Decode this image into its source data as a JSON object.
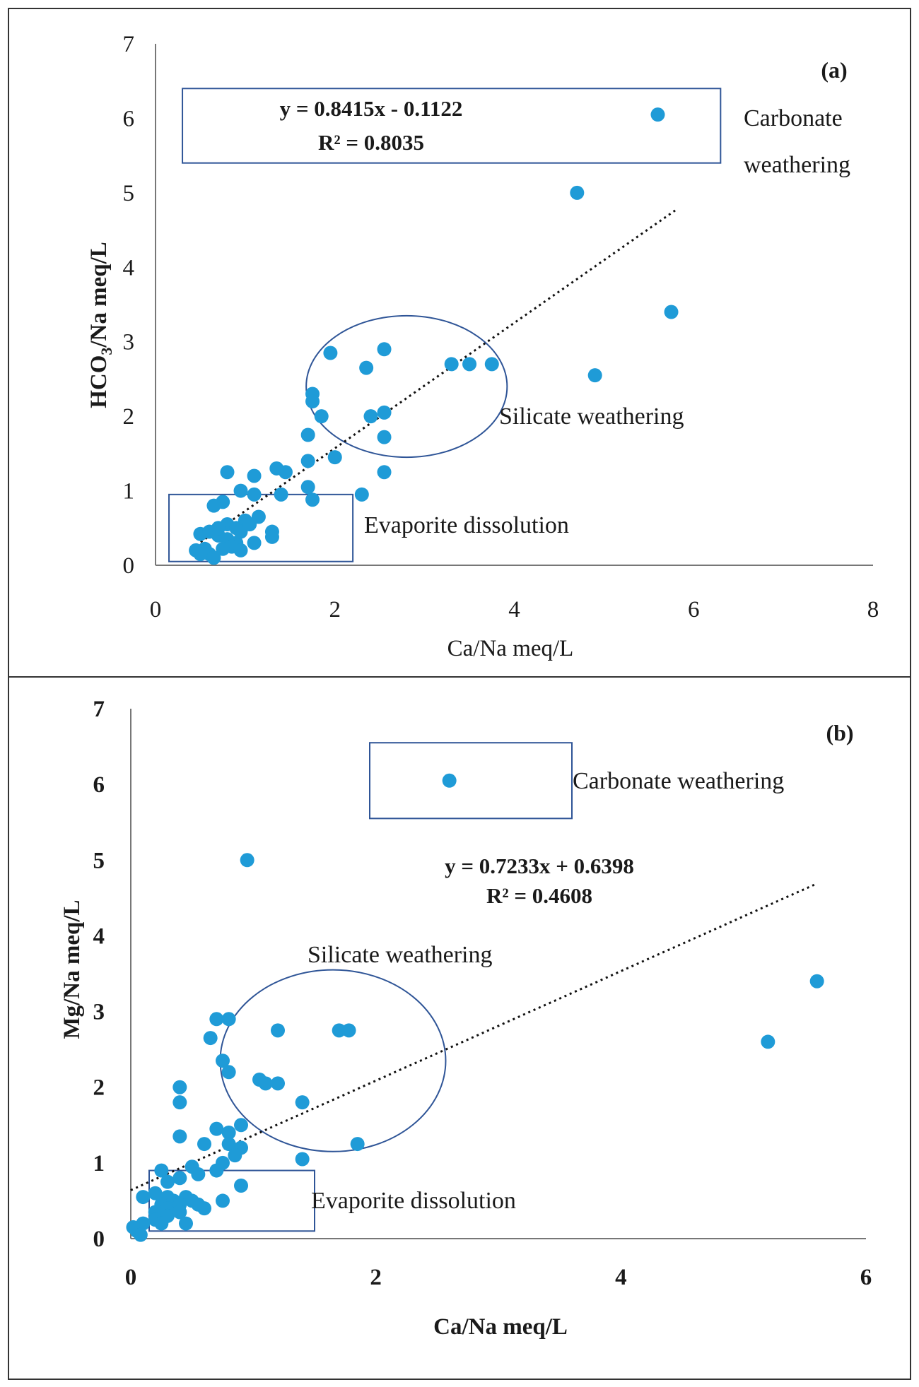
{
  "chart_data": [
    {
      "type": "scatter",
      "panel_label": "(a)",
      "xlabel": "Ca/Na meq/L",
      "ylabel_main": "HCO",
      "ylabel_sub": "3",
      "ylabel_rest": "/Na meq/L",
      "xlim": [
        0,
        8
      ],
      "ylim": [
        0,
        7
      ],
      "xticks": [
        0,
        2,
        4,
        6,
        8
      ],
      "yticks": [
        0,
        1,
        2,
        3,
        4,
        5,
        6,
        7
      ],
      "trendline": {
        "slope": 0.8415,
        "intercept": -0.1122,
        "x_range": [
          0.4,
          5.8
        ]
      },
      "equation": "y = 0.8415x - 0.1122",
      "r_squared": "R² = 0.8035",
      "annotations": {
        "carbonate_line1": "Carbonate",
        "carbonate_line2": "weathering",
        "silicate": "Silicate weathering",
        "evaporite": "Evaporite dissolution"
      },
      "regions": {
        "carbonate_box": {
          "x": [
            0.3,
            6.3
          ],
          "y": [
            5.4,
            6.4
          ]
        },
        "silicate_ellipse": {
          "cx": 2.8,
          "cy": 2.4,
          "rx": 1.12,
          "ry": 0.95
        },
        "evaporite_box": {
          "x": [
            0.15,
            2.2
          ],
          "y": [
            0.05,
            0.95
          ]
        }
      },
      "legend_marker": {
        "x": 5.6,
        "y": 6.05
      },
      "points": [
        [
          4.7,
          5.0
        ],
        [
          5.75,
          3.4
        ],
        [
          4.9,
          2.55
        ],
        [
          1.95,
          2.85
        ],
        [
          2.55,
          2.9
        ],
        [
          2.35,
          2.65
        ],
        [
          3.3,
          2.7
        ],
        [
          3.5,
          2.7
        ],
        [
          3.75,
          2.7
        ],
        [
          1.75,
          2.3
        ],
        [
          1.75,
          2.2
        ],
        [
          1.85,
          2.0
        ],
        [
          2.4,
          2.0
        ],
        [
          2.55,
          2.05
        ],
        [
          1.7,
          1.75
        ],
        [
          2.55,
          1.72
        ],
        [
          2.0,
          1.45
        ],
        [
          1.7,
          1.4
        ],
        [
          2.55,
          1.25
        ],
        [
          1.45,
          1.25
        ],
        [
          1.35,
          1.3
        ],
        [
          1.1,
          1.2
        ],
        [
          0.8,
          1.25
        ],
        [
          0.95,
          1.0
        ],
        [
          1.1,
          0.95
        ],
        [
          1.4,
          0.95
        ],
        [
          1.7,
          1.05
        ],
        [
          1.75,
          0.88
        ],
        [
          2.3,
          0.95
        ],
        [
          0.75,
          0.85
        ],
        [
          0.65,
          0.8
        ],
        [
          1.0,
          0.6
        ],
        [
          1.15,
          0.65
        ],
        [
          0.8,
          0.55
        ],
        [
          0.9,
          0.5
        ],
        [
          1.3,
          0.45
        ],
        [
          1.3,
          0.38
        ],
        [
          1.1,
          0.3
        ],
        [
          0.5,
          0.42
        ],
        [
          0.6,
          0.45
        ],
        [
          0.7,
          0.4
        ],
        [
          0.8,
          0.35
        ],
        [
          0.9,
          0.3
        ],
        [
          0.85,
          0.25
        ],
        [
          0.95,
          0.2
        ],
        [
          0.45,
          0.2
        ],
        [
          0.55,
          0.22
        ],
        [
          0.6,
          0.15
        ],
        [
          0.65,
          0.1
        ],
        [
          0.5,
          0.15
        ],
        [
          0.75,
          0.22
        ],
        [
          0.7,
          0.5
        ],
        [
          0.95,
          0.45
        ],
        [
          1.05,
          0.55
        ]
      ]
    },
    {
      "type": "scatter",
      "panel_label": "(b)",
      "xlabel": "Ca/Na meq/L",
      "ylabel": "Mg/Na meq/L",
      "xlim": [
        0,
        6
      ],
      "ylim": [
        0,
        7
      ],
      "xticks": [
        0,
        2,
        4,
        6
      ],
      "yticks": [
        0,
        1,
        2,
        3,
        4,
        5,
        6,
        7
      ],
      "trendline": {
        "slope": 0.7233,
        "intercept": 0.6398,
        "x_range": [
          0.0,
          5.6
        ]
      },
      "equation": "y = 0.7233x + 0.6398",
      "r_squared": "R² = 0.4608",
      "annotations": {
        "carbonate": "Carbonate weathering",
        "silicate": "Silicate weathering",
        "evaporite": "Evaporite dissolution"
      },
      "regions": {
        "carbonate_box": {
          "x": [
            1.95,
            3.6
          ],
          "y": [
            5.55,
            6.55
          ]
        },
        "silicate_ellipse": {
          "cx": 1.65,
          "cy": 2.35,
          "rx": 0.92,
          "ry": 1.2
        },
        "evaporite_box": {
          "x": [
            0.15,
            1.5
          ],
          "y": [
            0.1,
            0.9
          ]
        }
      },
      "legend_marker": {
        "x": 2.6,
        "y": 6.05
      },
      "points": [
        [
          0.95,
          5.0
        ],
        [
          5.6,
          3.4
        ],
        [
          5.2,
          2.6
        ],
        [
          0.7,
          2.9
        ],
        [
          0.8,
          2.9
        ],
        [
          0.65,
          2.65
        ],
        [
          1.2,
          2.75
        ],
        [
          1.7,
          2.75
        ],
        [
          1.78,
          2.75
        ],
        [
          0.75,
          2.35
        ],
        [
          0.8,
          2.2
        ],
        [
          1.05,
          2.1
        ],
        [
          1.1,
          2.05
        ],
        [
          1.2,
          2.05
        ],
        [
          0.4,
          2.0
        ],
        [
          0.4,
          1.8
        ],
        [
          1.4,
          1.8
        ],
        [
          0.9,
          1.5
        ],
        [
          0.7,
          1.45
        ],
        [
          0.8,
          1.4
        ],
        [
          0.4,
          1.35
        ],
        [
          0.6,
          1.25
        ],
        [
          0.8,
          1.25
        ],
        [
          0.9,
          1.2
        ],
        [
          0.85,
          1.1
        ],
        [
          1.85,
          1.25
        ],
        [
          1.4,
          1.05
        ],
        [
          0.75,
          1.0
        ],
        [
          0.5,
          0.95
        ],
        [
          0.7,
          0.9
        ],
        [
          0.25,
          0.9
        ],
        [
          0.55,
          0.85
        ],
        [
          0.4,
          0.8
        ],
        [
          0.3,
          0.75
        ],
        [
          0.9,
          0.7
        ],
        [
          0.1,
          0.55
        ],
        [
          0.2,
          0.6
        ],
        [
          0.3,
          0.55
        ],
        [
          0.35,
          0.5
        ],
        [
          0.45,
          0.55
        ],
        [
          0.5,
          0.5
        ],
        [
          0.25,
          0.45
        ],
        [
          0.3,
          0.4
        ],
        [
          0.4,
          0.45
        ],
        [
          0.55,
          0.45
        ],
        [
          0.6,
          0.4
        ],
        [
          0.2,
          0.35
        ],
        [
          0.3,
          0.3
        ],
        [
          0.4,
          0.35
        ],
        [
          0.75,
          0.5
        ],
        [
          0.2,
          0.25
        ],
        [
          0.25,
          0.2
        ],
        [
          0.45,
          0.2
        ],
        [
          0.02,
          0.15
        ],
        [
          0.05,
          0.1
        ],
        [
          0.1,
          0.2
        ],
        [
          0.08,
          0.05
        ]
      ]
    }
  ]
}
